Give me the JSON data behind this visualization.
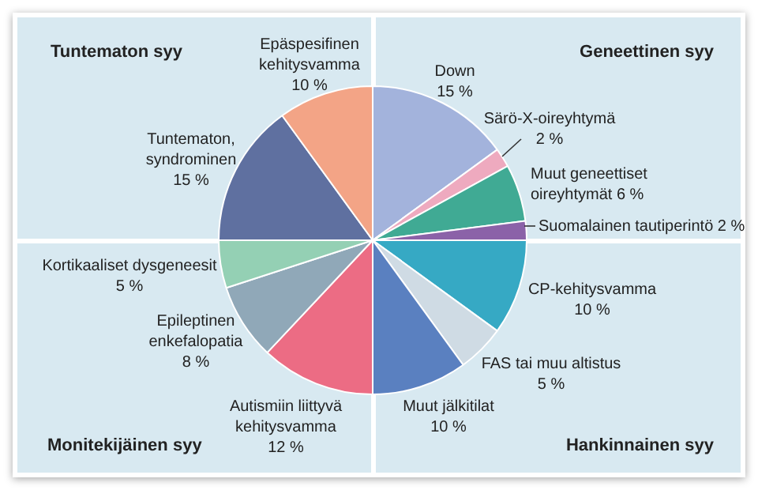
{
  "chart_data": {
    "type": "pie",
    "categories": [
      "Down",
      "Särö-X-oireyhtymä",
      "Muut geneettiset oireyhtymät",
      "Suomalainen tautiperintö",
      "CP-kehitysvamma",
      "FAS tai muu altistus",
      "Muut jälkitilat",
      "Autismiin liittyvä kehitysvamma",
      "Epileptinen enkefalopatia",
      "Kortikaaliset dysgeneesit",
      "Tuntematon, syndrominen",
      "Epäspesifinen kehitysvamma"
    ],
    "values": [
      15,
      2,
      6,
      2,
      10,
      5,
      10,
      12,
      8,
      5,
      15,
      10
    ],
    "colors": [
      "#a3b3dc",
      "#eeaabf",
      "#40aa94",
      "#8b62a8",
      "#36a9c4",
      "#cfdbe4",
      "#5a80c0",
      "#ec6c84",
      "#90a8b8",
      "#94d0b4",
      "#5f70a0",
      "#f3a486"
    ],
    "value_labels": [
      "15 %",
      "2 %",
      "6 %",
      "2 %",
      "10 %",
      "5 %",
      "10 %",
      "12 %",
      "8 %",
      "5 %",
      "15 %",
      "10 %"
    ],
    "annotations": [
      "Tuntematon syy",
      "Geneettinen syy",
      "Monitekijäinen syy",
      "Hankinnainen syy"
    ],
    "legend": false
  }
}
